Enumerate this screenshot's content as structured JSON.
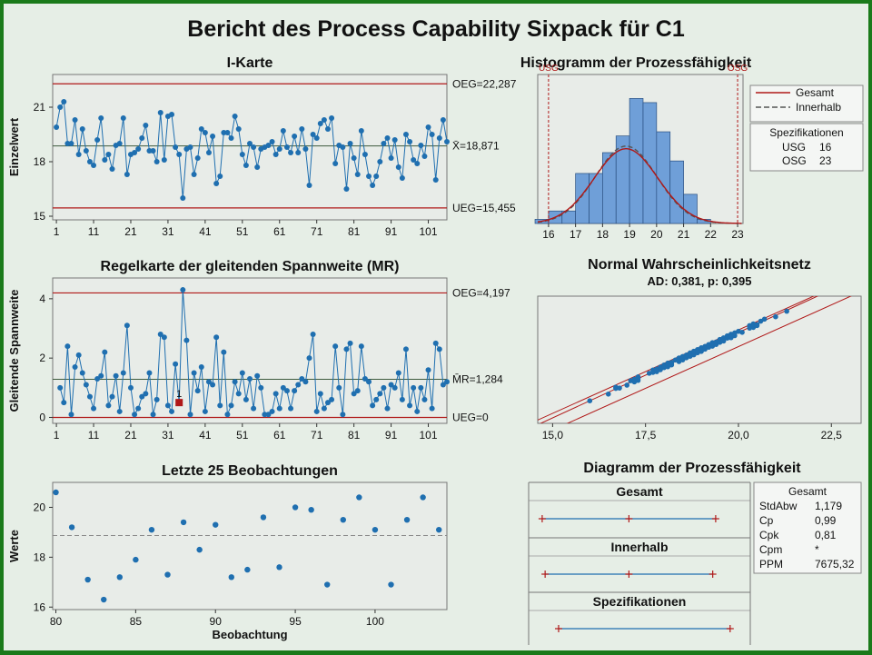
{
  "title": "Bericht des Process Capability Sixpack für C1",
  "colors": {
    "series": "#1f6fb0",
    "limit": "#b01818",
    "center": "#3d5a3d",
    "bar": "#6f9fd8",
    "plotBg": "#e8ece8",
    "frameBg": "#e6eee6",
    "border": "#1a7a1a"
  },
  "chart_data": [
    {
      "id": "ichart",
      "type": "line",
      "title": "I-Karte",
      "ylabel": "Einzelwert",
      "xticks": [
        "1",
        "11",
        "21",
        "31",
        "41",
        "51",
        "61",
        "71",
        "81",
        "91",
        "101"
      ],
      "yticks": [
        "15",
        "18",
        "21"
      ],
      "ylim": [
        14.8,
        22.8
      ],
      "xlim": [
        0,
        106
      ],
      "center_label": "X̄=18,871",
      "center": 18.871,
      "ucl_label": "OEG=22,287",
      "ucl": 22.287,
      "lcl_label": "UEG=15,455",
      "lcl": 15.455,
      "values": [
        19.9,
        21.0,
        21.3,
        19.0,
        19.0,
        20.3,
        18.4,
        19.8,
        18.6,
        18.0,
        17.8,
        19.2,
        20.4,
        18.1,
        18.4,
        17.6,
        18.9,
        19.0,
        20.4,
        17.3,
        18.4,
        18.5,
        18.7,
        19.3,
        20.0,
        18.6,
        18.6,
        18.0,
        20.7,
        18.1,
        20.5,
        20.6,
        18.8,
        18.4,
        16.0,
        18.7,
        18.8,
        17.3,
        18.2,
        19.8,
        19.6,
        18.5,
        19.4,
        16.8,
        17.2,
        19.6,
        19.6,
        19.3,
        20.5,
        19.8,
        18.4,
        17.8,
        19.0,
        18.8,
        17.7,
        18.7,
        18.8,
        18.9,
        19.1,
        18.4,
        18.7,
        19.7,
        18.8,
        18.5,
        19.4,
        18.5,
        19.8,
        18.7,
        16.7,
        19.5,
        19.3,
        20.1,
        20.3,
        19.8,
        20.4,
        17.9,
        18.9,
        18.8,
        16.5,
        19.0,
        18.2,
        17.3,
        19.7,
        18.4,
        17.2,
        16.7,
        17.2,
        18.0,
        19.0,
        19.3,
        18.2,
        19.2,
        17.7,
        17.1,
        19.5,
        19.1,
        18.1,
        17.9,
        18.9,
        18.3,
        19.9,
        19.5,
        17.0,
        19.3,
        20.3,
        19.1
      ]
    },
    {
      "id": "mrchart",
      "type": "line",
      "title": "Regelkarte der gleitenden Spannweite (MR)",
      "ylabel": "Gleitende Spannweite",
      "xticks": [
        "1",
        "11",
        "21",
        "31",
        "41",
        "51",
        "61",
        "71",
        "81",
        "91",
        "101"
      ],
      "yticks": [
        "0",
        "2",
        "4"
      ],
      "ylim": [
        -0.2,
        4.7
      ],
      "xlim": [
        0,
        106
      ],
      "center_label": "M̄R=1,284",
      "center": 1.284,
      "ucl_label": "OEG=4,197",
      "ucl": 4.197,
      "lcl_label": "UEG=0",
      "lcl": 0,
      "ooc_index": 34,
      "ooc_label": "1",
      "values": [
        null,
        1.0,
        0.5,
        2.4,
        0.1,
        1.7,
        2.1,
        1.5,
        1.1,
        0.7,
        0.3,
        1.3,
        1.4,
        2.2,
        0.4,
        0.7,
        1.4,
        0.2,
        1.5,
        3.1,
        1.0,
        0.1,
        0.3,
        0.7,
        0.8,
        1.5,
        0.1,
        0.6,
        2.8,
        2.7,
        0.4,
        0.2,
        1.8,
        0.5,
        4.3,
        2.6,
        0.1,
        1.5,
        0.9,
        1.7,
        0.2,
        1.2,
        1.1,
        2.7,
        0.4,
        2.2,
        0.1,
        0.4,
        1.2,
        0.8,
        1.5,
        0.6,
        1.3,
        0.3,
        1.4,
        1.0,
        0.1,
        0.1,
        0.2,
        0.8,
        0.3,
        1.0,
        0.9,
        0.3,
        0.9,
        1.1,
        1.3,
        1.2,
        2.0,
        2.8,
        0.2,
        0.8,
        0.3,
        0.5,
        0.6,
        2.4,
        1.0,
        0.1,
        2.3,
        2.5,
        0.8,
        0.9,
        2.4,
        1.3,
        1.2,
        0.4,
        0.6,
        0.8,
        1.0,
        0.3,
        1.1,
        1.0,
        1.5,
        0.6,
        2.3,
        0.4,
        1.0,
        0.2,
        1.0,
        0.6,
        1.6,
        0.3,
        2.5,
        2.3,
        1.1,
        1.2
      ]
    },
    {
      "id": "last25",
      "type": "scatter",
      "title": "Letzte 25 Beobachtungen",
      "xlabel": "Beobachtung",
      "ylabel": "Werte",
      "xticks": [
        "80",
        "85",
        "90",
        "95",
        "100"
      ],
      "xtick_values": [
        80,
        85,
        90,
        95,
        100
      ],
      "yticks": [
        "16",
        "18",
        "20"
      ],
      "ylim": [
        15.9,
        21.0
      ],
      "xlim": [
        79.8,
        104.5
      ],
      "mean": 18.871,
      "x": [
        80,
        81,
        82,
        83,
        84,
        85,
        86,
        87,
        88,
        89,
        90,
        91,
        92,
        93,
        94,
        95,
        96,
        97,
        98,
        99,
        100,
        101,
        102,
        103,
        104
      ],
      "values": [
        20.6,
        19.2,
        17.1,
        16.3,
        17.2,
        17.9,
        19.1,
        17.3,
        19.4,
        18.3,
        19.3,
        17.2,
        17.5,
        19.6,
        17.6,
        20.0,
        19.9,
        16.9,
        19.5,
        20.4,
        19.1,
        16.9,
        19.5,
        20.4,
        19.1
      ]
    },
    {
      "id": "hist",
      "type": "bar",
      "title": "Histogramm der Prozessfähigkeit",
      "xticks": [
        "16",
        "17",
        "18",
        "19",
        "20",
        "21",
        "22",
        "23"
      ],
      "xtick_values": [
        16,
        17,
        18,
        19,
        20,
        21,
        22,
        23
      ],
      "xlim": [
        15.6,
        23.2
      ],
      "usl_label": "OSG",
      "lsl_label": "USG",
      "lsl": 16,
      "usl": 23,
      "bin_edges": [
        15.5,
        16,
        16.5,
        17,
        17.5,
        18,
        18.5,
        19,
        19.5,
        20,
        20.5,
        21,
        21.5,
        22
      ],
      "counts": [
        1,
        3,
        3,
        12,
        12,
        17,
        21,
        30,
        29,
        22,
        15,
        7,
        1
      ],
      "legend": [
        {
          "name": "Gesamt",
          "style": "solid"
        },
        {
          "name": "Innerhalb",
          "style": "dashed"
        }
      ],
      "spec_title": "Spezifikationen",
      "spec_rows": [
        {
          "label": "USG",
          "value": "16"
        },
        {
          "label": "OSG",
          "value": "23"
        }
      ]
    },
    {
      "id": "prob",
      "type": "scatter",
      "title": "Normal Wahrscheinlichkeitsnetz",
      "subtitle": "AD: 0,381, p: 0,395",
      "xticks": [
        "15,0",
        "17,5",
        "20,0",
        "22,5"
      ],
      "xtick_values": [
        15,
        17.5,
        20,
        22.5
      ],
      "xlim": [
        14.6,
        23.3
      ]
    },
    {
      "id": "capplot",
      "type": "line",
      "title": "Diagramm der Prozessfähigkeit",
      "rows": [
        {
          "label": "Gesamt",
          "low": 15.33,
          "mid": 18.87,
          "high": 22.41
        },
        {
          "label": "Innerhalb",
          "low": 15.45,
          "mid": 18.87,
          "high": 22.29
        },
        {
          "label": "Spezifikationen",
          "low": 16,
          "high": 23
        }
      ],
      "xlim": [
        15.0,
        23.6
      ],
      "stats_title": "Gesamt",
      "stats": [
        {
          "label": "StdAbw",
          "value": "1,179"
        },
        {
          "label": "Cp",
          "value": "0,99"
        },
        {
          "label": "Cpk",
          "value": "0,81"
        },
        {
          "label": "Cpm",
          "value": "*"
        },
        {
          "label": "PPM",
          "value": "7675,32"
        }
      ]
    }
  ]
}
